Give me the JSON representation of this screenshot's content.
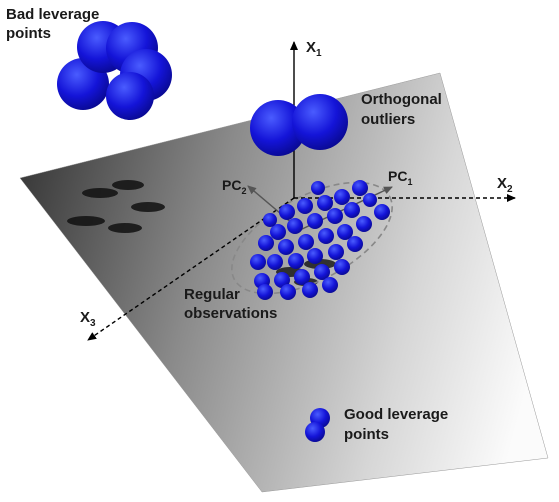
{
  "labels": {
    "bad_leverage": [
      "Bad leverage",
      "points"
    ],
    "orthogonal": [
      "Orthogonal",
      "outliers"
    ],
    "regular": [
      "Regular",
      "observations"
    ],
    "good_leverage": [
      "Good leverage",
      "points"
    ]
  },
  "axes": {
    "x1": {
      "base": "X",
      "sub": "1"
    },
    "x2": {
      "base": "X",
      "sub": "2"
    },
    "x3": {
      "base": "X",
      "sub": "3"
    },
    "pc1": {
      "base": "PC",
      "sub": "1"
    },
    "pc2": {
      "base": "PC",
      "sub": "2"
    }
  },
  "colors": {
    "point": "#1414d8",
    "point_edge": "#0a0a80",
    "plane_dark": "#3a3a3a",
    "plane_light": "#fbfbfb",
    "shadow": "#111111"
  }
}
